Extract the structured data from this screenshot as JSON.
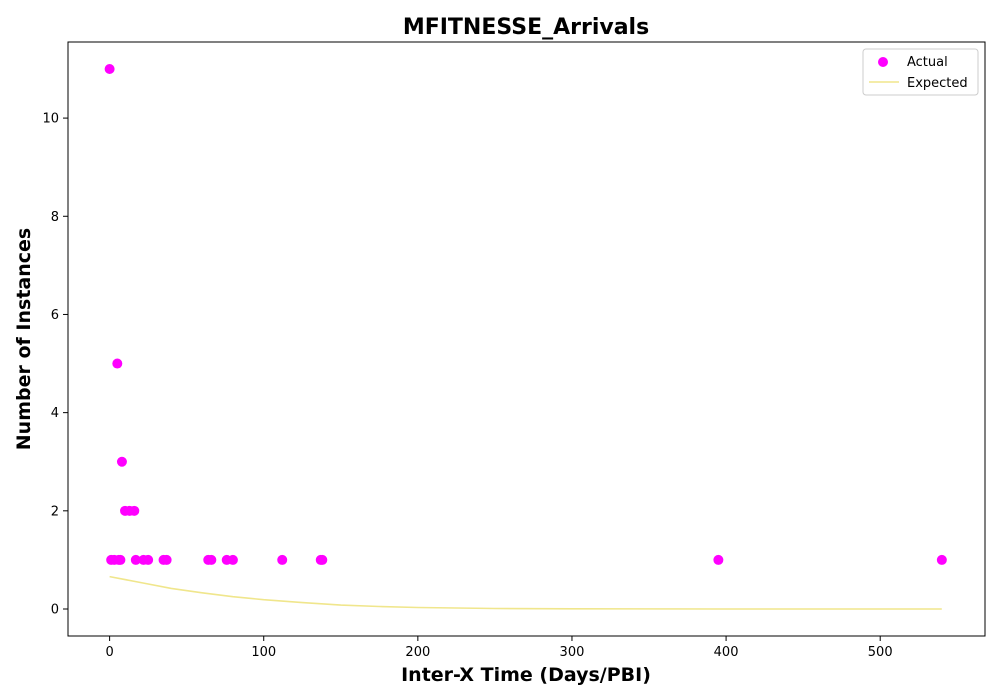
{
  "chart_data": {
    "type": "scatter",
    "title": "MFITNESSE_Arrivals",
    "xlabel": "Inter-X Time (Days/PBI)",
    "ylabel": "Number of Instances",
    "xlim": [
      -27,
      568
    ],
    "ylim": [
      -0.55,
      11.55
    ],
    "xticks": [
      0,
      100,
      200,
      300,
      400,
      500
    ],
    "yticks": [
      0,
      2,
      4,
      6,
      8,
      10
    ],
    "grid": false,
    "legend": {
      "placement": "top-right",
      "entries": [
        "Actual",
        "Expected"
      ]
    },
    "colors": {
      "actual": "#ff00ff",
      "expected": "#f0e68c",
      "axes": "#000000",
      "background": "#ffffff"
    },
    "series": [
      {
        "name": "Actual",
        "kind": "scatter",
        "points": [
          {
            "x": 0,
            "y": 11
          },
          {
            "x": 1,
            "y": 1
          },
          {
            "x": 3,
            "y": 1
          },
          {
            "x": 5,
            "y": 5
          },
          {
            "x": 6,
            "y": 1
          },
          {
            "x": 7,
            "y": 1
          },
          {
            "x": 8,
            "y": 3
          },
          {
            "x": 10,
            "y": 2
          },
          {
            "x": 13,
            "y": 2
          },
          {
            "x": 16,
            "y": 2
          },
          {
            "x": 17,
            "y": 1
          },
          {
            "x": 22,
            "y": 1
          },
          {
            "x": 25,
            "y": 1
          },
          {
            "x": 35,
            "y": 1
          },
          {
            "x": 37,
            "y": 1
          },
          {
            "x": 64,
            "y": 1
          },
          {
            "x": 66,
            "y": 1
          },
          {
            "x": 76,
            "y": 1
          },
          {
            "x": 80,
            "y": 1
          },
          {
            "x": 112,
            "y": 1
          },
          {
            "x": 137,
            "y": 1
          },
          {
            "x": 138,
            "y": 1
          },
          {
            "x": 395,
            "y": 1
          },
          {
            "x": 540,
            "y": 1
          }
        ]
      },
      {
        "name": "Expected",
        "kind": "line",
        "points": [
          {
            "x": 0,
            "y": 0.66
          },
          {
            "x": 20,
            "y": 0.54
          },
          {
            "x": 40,
            "y": 0.42
          },
          {
            "x": 60,
            "y": 0.33
          },
          {
            "x": 80,
            "y": 0.25
          },
          {
            "x": 100,
            "y": 0.19
          },
          {
            "x": 125,
            "y": 0.13
          },
          {
            "x": 150,
            "y": 0.08
          },
          {
            "x": 175,
            "y": 0.05
          },
          {
            "x": 200,
            "y": 0.03
          },
          {
            "x": 250,
            "y": 0.01
          },
          {
            "x": 300,
            "y": 0.005
          },
          {
            "x": 400,
            "y": 0.0
          },
          {
            "x": 540,
            "y": 0.0
          }
        ]
      }
    ]
  }
}
